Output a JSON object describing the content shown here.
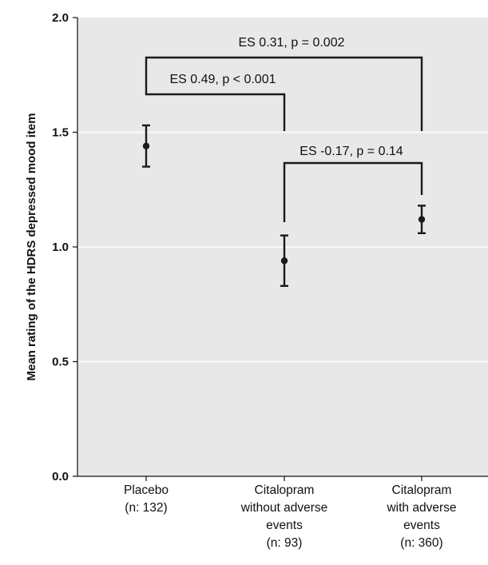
{
  "chart_data": {
    "type": "scatter",
    "ylabel": "Mean rating of the HDRS depressed mood item",
    "ylim": [
      0,
      2.0
    ],
    "yticks": [
      "0.0",
      "0.5",
      "1.0",
      "1.5",
      "2.0"
    ],
    "grid": true,
    "categories": [
      [
        "Placebo",
        "(n: 132)"
      ],
      [
        "Citalopram",
        "without adverse",
        "events",
        "(n: 93)"
      ],
      [
        "Citalopram",
        "with adverse",
        "events",
        "(n: 360)"
      ]
    ],
    "points": [
      {
        "mean": 1.44,
        "low": 1.35,
        "high": 1.53
      },
      {
        "mean": 0.94,
        "low": 0.83,
        "high": 1.05
      },
      {
        "mean": 1.12,
        "low": 1.06,
        "high": 1.18
      }
    ],
    "annotations": [
      {
        "text": "ES 0.31, p = 0.002",
        "from": 0,
        "to": 2
      },
      {
        "text": "ES 0.49, p < 0.001",
        "from": 0,
        "to": 1
      },
      {
        "text": "ES -0.17, p = 0.14",
        "from": 1,
        "to": 2
      }
    ],
    "colors": {
      "plot_bg": "#e8e8e8",
      "marks": "#1a1a1a",
      "grid": "#ffffff"
    }
  }
}
